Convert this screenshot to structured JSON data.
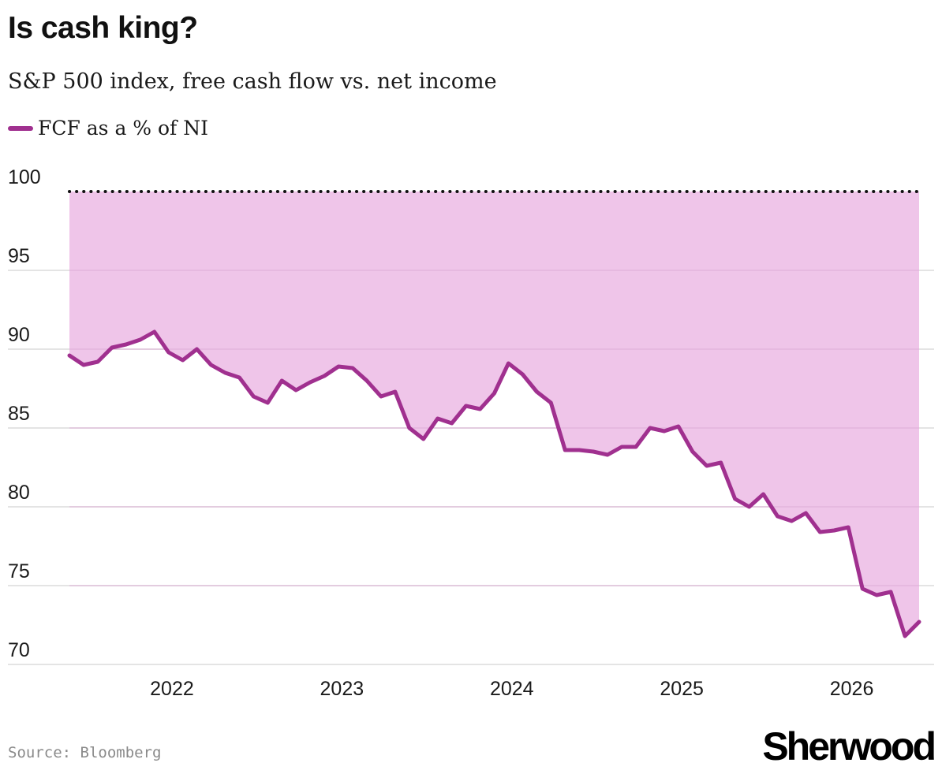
{
  "header": {
    "title": "Is cash king?",
    "subtitle": "S&P 500 index, free cash flow vs. net income"
  },
  "footer": {
    "source": "Source: Bloomberg",
    "brand": "Sherwood"
  },
  "colors": {
    "line": "#a0308f",
    "fill": "#efc5e9",
    "grid": "#dcdcdc",
    "reference": "#111111"
  },
  "chart_data": {
    "type": "area",
    "title": "Is cash king?",
    "subtitle": "S&P 500 index, free cash flow vs. net income",
    "legend": [
      "FCF as a % of NI"
    ],
    "legend_position": "top-left",
    "grid": true,
    "xlabel": "",
    "ylabel": "",
    "ylim": [
      70,
      100
    ],
    "y_ticks": [
      "70",
      "75",
      "80",
      "85",
      "90",
      "95",
      "100"
    ],
    "x_ticks": [
      "2022",
      "2023",
      "2024",
      "2025",
      "2026"
    ],
    "reference_line": {
      "y": 100,
      "style": "dotted"
    },
    "fill": "between series and reference line",
    "series": [
      {
        "name": "FCF as a % of NI",
        "x": [
          "2021-06",
          "2021-07",
          "2021-08",
          "2021-09",
          "2021-10",
          "2021-11",
          "2021-12",
          "2022-01",
          "2022-02",
          "2022-03",
          "2022-04",
          "2022-05",
          "2022-06",
          "2022-07",
          "2022-08",
          "2022-09",
          "2022-10",
          "2022-11",
          "2022-12",
          "2023-01",
          "2023-02",
          "2023-03",
          "2023-04",
          "2023-05",
          "2023-06",
          "2023-07",
          "2023-08",
          "2023-09",
          "2023-10",
          "2023-11",
          "2023-12",
          "2024-01",
          "2024-02",
          "2024-03",
          "2024-04",
          "2024-05",
          "2024-06",
          "2024-07",
          "2024-08",
          "2024-09",
          "2024-10",
          "2024-11",
          "2024-12",
          "2025-01",
          "2025-02",
          "2025-03",
          "2025-04",
          "2025-05",
          "2025-06",
          "2025-07",
          "2025-08",
          "2025-09",
          "2025-10",
          "2025-11",
          "2025-12",
          "2026-01",
          "2026-02",
          "2026-03",
          "2026-04",
          "2026-05",
          "2026-06"
        ],
        "values": [
          89.6,
          89.0,
          89.2,
          90.1,
          90.3,
          90.6,
          91.1,
          89.8,
          89.3,
          90.0,
          89.0,
          88.5,
          88.2,
          87.0,
          86.6,
          88.0,
          87.4,
          87.9,
          88.3,
          88.9,
          88.8,
          88.0,
          87.0,
          87.3,
          85.0,
          84.3,
          85.6,
          85.3,
          86.4,
          86.2,
          87.2,
          89.1,
          88.4,
          87.3,
          86.6,
          83.6,
          83.6,
          83.5,
          83.3,
          83.8,
          83.8,
          85.0,
          84.8,
          85.1,
          83.5,
          82.6,
          82.8,
          80.5,
          80.0,
          80.8,
          79.4,
          79.1,
          79.6,
          78.4,
          78.5,
          78.7,
          74.8,
          74.4,
          74.6,
          71.8,
          72.7
        ]
      }
    ]
  }
}
